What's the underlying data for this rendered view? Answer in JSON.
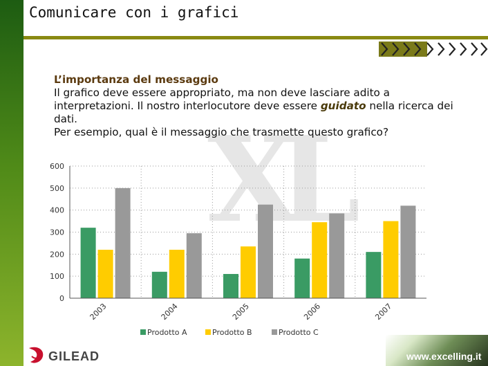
{
  "slide": {
    "title": "Comunicare con i grafici",
    "heading": "L’importanza del messaggio",
    "line1": "Il grafico deve essere appropriato, ma non deve lasciare adito a",
    "line2_pre": "interpretazioni. Il nostro interlocutore deve essere ",
    "line2_em": "guidato",
    "line2_post": " nella ricerca dei",
    "line3": "dati.",
    "line4": "Per esempio, qual è il messaggio che trasmette questo grafico?"
  },
  "logo": {
    "name": "GILEAD"
  },
  "footer": {
    "site": "www.excelling.it"
  },
  "colors": {
    "band": "#3e7a17",
    "rule": "#8a8a12",
    "series": [
      "#3a9b64",
      "#ffcc00",
      "#999999"
    ]
  },
  "chart_data": {
    "type": "bar",
    "categories": [
      "2003",
      "2004",
      "2005",
      "2006",
      "2007"
    ],
    "series": [
      {
        "name": "Prodotto A",
        "values": [
          320,
          120,
          110,
          180,
          210
        ]
      },
      {
        "name": "Prodotto B",
        "values": [
          220,
          220,
          235,
          345,
          350
        ]
      },
      {
        "name": "Prodotto C",
        "values": [
          500,
          295,
          425,
          385,
          420
        ]
      }
    ],
    "yticks": [
      "0",
      "100",
      "200",
      "300",
      "400",
      "500",
      "600"
    ],
    "ylim": [
      0,
      600
    ],
    "grid": true,
    "legend": "bottom"
  }
}
